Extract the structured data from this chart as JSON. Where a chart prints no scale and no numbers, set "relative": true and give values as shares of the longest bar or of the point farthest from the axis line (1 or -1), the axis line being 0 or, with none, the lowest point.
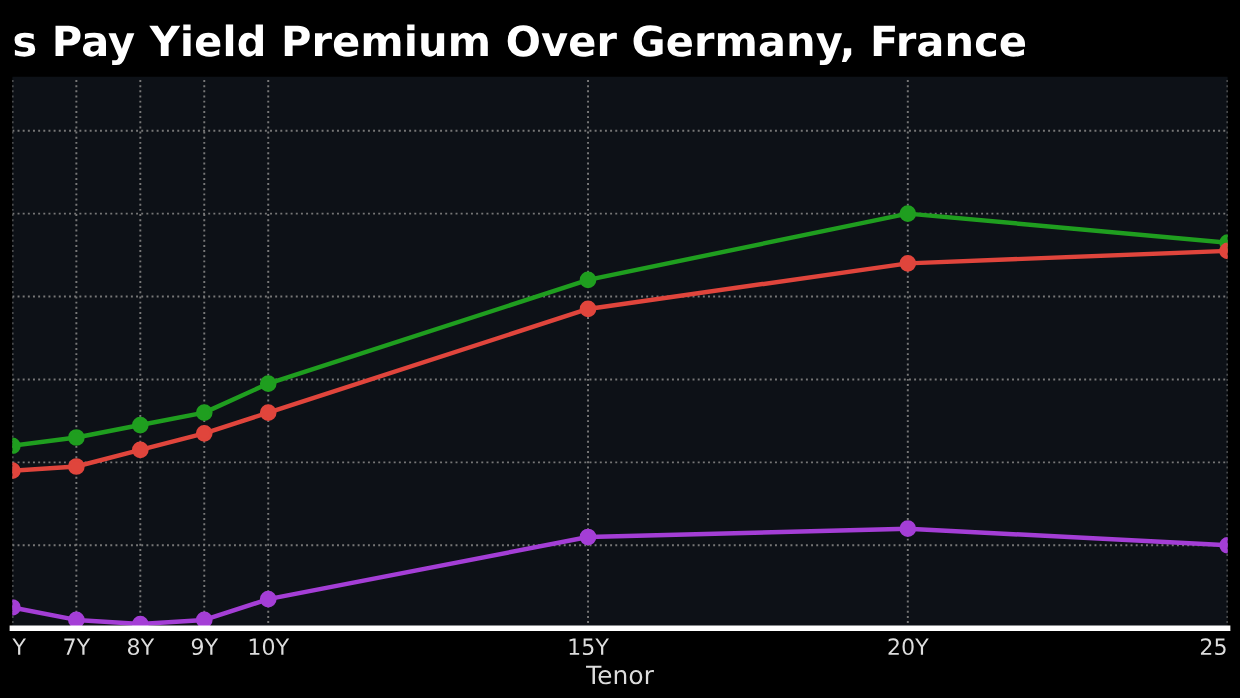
{
  "chart_data": {
    "type": "line",
    "title": "s Pay Yield Premium Over Germany, France",
    "xlabel": "Tenor",
    "x": [
      6,
      7,
      8,
      9,
      10,
      15,
      20,
      25
    ],
    "xlim": [
      6,
      25
    ],
    "xticks": [
      {
        "value": 6,
        "label": "Y"
      },
      {
        "value": 7,
        "label": "7Y"
      },
      {
        "value": 8,
        "label": "8Y"
      },
      {
        "value": 9,
        "label": "9Y"
      },
      {
        "value": 10,
        "label": "10Y"
      },
      {
        "value": 15,
        "label": "15Y"
      },
      {
        "value": 20,
        "label": "20Y"
      },
      {
        "value": 25,
        "label": "25"
      }
    ],
    "relative": true,
    "grid": true,
    "marker": "circle",
    "line_style": "solid",
    "series": [
      {
        "color": "#1f9e1f",
        "values": [
          0.44,
          0.46,
          0.49,
          0.52,
          0.59,
          0.84,
          1,
          0.93
        ]
      },
      {
        "color": "#e0453c",
        "values": [
          0.38,
          0.39,
          0.43,
          0.47,
          0.52,
          0.77,
          0.88,
          0.91
        ]
      },
      {
        "color": "#a43ed6",
        "values": [
          0.05,
          0.02,
          0.01,
          0.02,
          0.07,
          0.22,
          0.24,
          0.2
        ]
      }
    ]
  }
}
